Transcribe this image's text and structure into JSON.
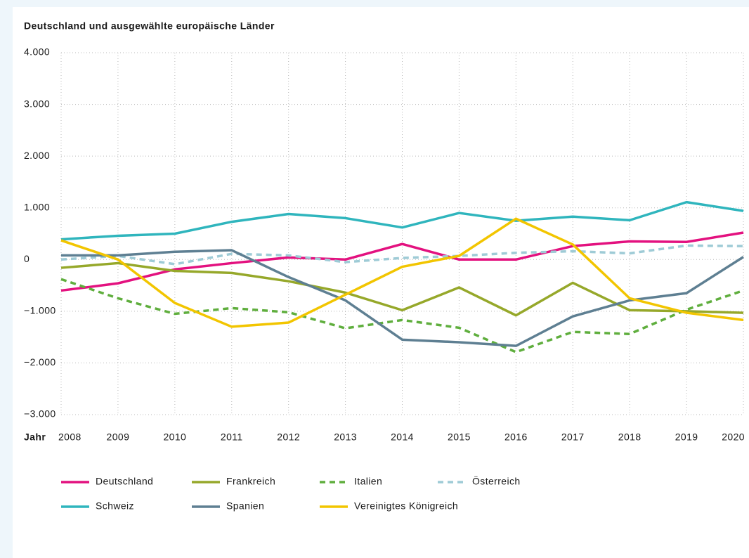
{
  "chart_data": {
    "type": "line",
    "title": "Deutschland und ausgewählte europäische Länder",
    "xlabel": "Jahr",
    "categories": [
      "2008",
      "2009",
      "2010",
      "2011",
      "2012",
      "2013",
      "2014",
      "2015",
      "2016",
      "2017",
      "2018",
      "2019",
      "2020"
    ],
    "ylim": [
      -3000,
      4000
    ],
    "yticks": [
      {
        "value": 4000,
        "label": "4.000"
      },
      {
        "value": 3000,
        "label": "3.000"
      },
      {
        "value": 2000,
        "label": "2.000"
      },
      {
        "value": 1000,
        "label": "1.000"
      },
      0,
      {
        "value": -1000,
        "label": "−1.000"
      },
      {
        "value": -2000,
        "label": "−2.000"
      },
      {
        "value": -3000,
        "label": "−3.000"
      }
    ],
    "grid": true,
    "series": [
      {
        "name": "Deutschland",
        "color": "#e3117f",
        "style": "solid",
        "values": [
          -600,
          -460,
          -190,
          -70,
          40,
          0,
          300,
          0,
          0,
          260,
          350,
          340,
          520
        ]
      },
      {
        "name": "Frankreich",
        "color": "#96a82a",
        "style": "solid",
        "values": [
          -160,
          -70,
          -220,
          -260,
          -420,
          -640,
          -980,
          -540,
          -1080,
          -450,
          -980,
          -1000,
          -1030
        ]
      },
      {
        "name": "Italien",
        "color": "#5fae3d",
        "style": "dashed",
        "values": [
          -380,
          -750,
          -1050,
          -940,
          -1020,
          -1330,
          -1170,
          -1320,
          -1790,
          -1400,
          -1440,
          -970,
          -600
        ]
      },
      {
        "name": "Österreich",
        "color": "#9ecbd6",
        "style": "dashed",
        "values": [
          0,
          70,
          -90,
          110,
          80,
          -50,
          30,
          70,
          130,
          160,
          120,
          270,
          260
        ]
      },
      {
        "name": "Schweiz",
        "color": "#2fb5bd",
        "style": "solid",
        "values": [
          390,
          460,
          500,
          730,
          880,
          800,
          620,
          900,
          750,
          830,
          760,
          1110,
          940
        ]
      },
      {
        "name": "Spanien",
        "color": "#5e7f92",
        "style": "solid",
        "values": [
          80,
          80,
          150,
          180,
          -340,
          -790,
          -1550,
          -1600,
          -1670,
          -1100,
          -790,
          -650,
          50
        ]
      },
      {
        "name": "Vereinigtes Königreich",
        "color": "#f2c500",
        "style": "solid",
        "values": [
          370,
          0,
          -840,
          -1300,
          -1220,
          -680,
          -140,
          70,
          790,
          290,
          -750,
          -1030,
          -1170
        ]
      }
    ]
  }
}
